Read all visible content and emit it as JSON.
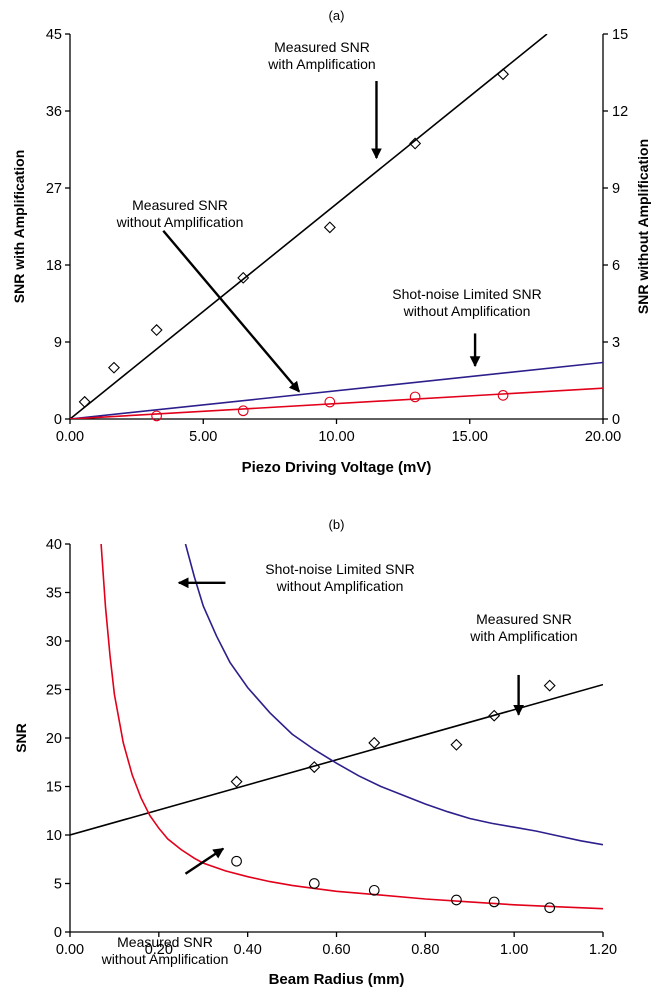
{
  "chart_data": [
    {
      "type": "scatter",
      "title": "(a)",
      "xlabel": "Piezo Driving Voltage (mV)",
      "ylabel": "SNR with Amplification",
      "ylabel_right": "SNR without Amplification",
      "xlim": [
        0,
        20
      ],
      "ylim": [
        0,
        45
      ],
      "ylim_right": [
        0,
        15
      ],
      "x_ticks": [
        "0.00",
        "5.00",
        "10.00",
        "15.00",
        "20.00"
      ],
      "y_ticks": [
        "0",
        "9",
        "18",
        "27",
        "36",
        "45"
      ],
      "y_ticks_right": [
        "0",
        "3",
        "6",
        "9",
        "12",
        "15"
      ],
      "grid": false,
      "series": [
        {
          "axis": "left",
          "marker": "diamond",
          "color": "#000000",
          "points": [
            [
              0.55,
              2.0
            ],
            [
              1.65,
              6.0
            ],
            [
              3.25,
              10.4
            ],
            [
              6.5,
              16.5
            ],
            [
              9.75,
              22.4
            ],
            [
              12.95,
              32.2
            ],
            [
              16.25,
              40.3
            ]
          ]
        },
        {
          "axis": "left",
          "line": "fit",
          "color": "#000000",
          "x": [
            0,
            17.9
          ],
          "y": [
            0,
            45
          ]
        },
        {
          "axis": "right",
          "line": "fit",
          "color": "#2c1f8c",
          "x": [
            0,
            20
          ],
          "y": [
            0,
            2.2
          ]
        },
        {
          "axis": "right",
          "line": "fit",
          "color": "#e2001a",
          "x": [
            0,
            20
          ],
          "y": [
            0,
            1.2
          ]
        },
        {
          "axis": "right",
          "marker": "circle",
          "color": "#e2001a",
          "points": [
            [
              3.25,
              0.12
            ],
            [
              6.5,
              0.32
            ],
            [
              9.75,
              0.66
            ],
            [
              12.95,
              0.86
            ],
            [
              16.25,
              0.92
            ]
          ]
        }
      ],
      "annotations": [
        {
          "lines": [
            "Measured SNR",
            "with Amplification"
          ],
          "from": [
            11.5,
            39.5
          ],
          "to": [
            11.5,
            30.5
          ]
        },
        {
          "lines": [
            "Measured SNR",
            "without Amplification"
          ],
          "from": [
            3.5,
            22.0
          ],
          "to": [
            8.6,
            3.2
          ]
        },
        {
          "lines": [
            "Shot-noise Limited SNR",
            "without Amplification"
          ],
          "from": [
            15.2,
            10.0
          ],
          "to": [
            15.2,
            6.2
          ]
        }
      ]
    },
    {
      "type": "line",
      "title": "(b)",
      "xlabel": "Beam Radius (mm)",
      "ylabel": "SNR",
      "xlim": [
        0,
        1.2
      ],
      "ylim": [
        0,
        40
      ],
      "x_ticks": [
        "0.00",
        "0.20",
        "0.40",
        "0.60",
        "0.80",
        "1.00",
        "1.20"
      ],
      "y_ticks": [
        "0",
        "5",
        "10",
        "15",
        "20",
        "25",
        "30",
        "35",
        "40"
      ],
      "grid": false,
      "series": [
        {
          "marker": "diamond",
          "color": "#000000",
          "points": [
            [
              0.375,
              15.5
            ],
            [
              0.55,
              17.0
            ],
            [
              0.685,
              19.5
            ],
            [
              0.87,
              19.3
            ],
            [
              0.955,
              22.3
            ],
            [
              1.08,
              25.4
            ]
          ]
        },
        {
          "line": "fit",
          "color": "#000000",
          "x": [
            0,
            1.2
          ],
          "y": [
            10.0,
            25.5
          ]
        },
        {
          "line": "curve",
          "color": "#2c1f8c",
          "x": [
            0.26,
            0.28,
            0.3,
            0.33,
            0.36,
            0.4,
            0.45,
            0.5,
            0.55,
            0.6,
            0.65,
            0.7,
            0.75,
            0.8,
            0.85,
            0.9,
            0.95,
            1.0,
            1.05,
            1.1,
            1.15,
            1.2
          ],
          "y": [
            40.0,
            36.6,
            33.6,
            30.5,
            27.8,
            25.2,
            22.6,
            20.4,
            18.8,
            17.4,
            16.1,
            15.0,
            14.1,
            13.2,
            12.4,
            11.7,
            11.2,
            10.8,
            10.4,
            9.9,
            9.4,
            9.0
          ]
        },
        {
          "line": "curve",
          "color": "#e2001a",
          "x": [
            0.07,
            0.08,
            0.09,
            0.1,
            0.12,
            0.14,
            0.16,
            0.18,
            0.2,
            0.22,
            0.25,
            0.28,
            0.3,
            0.35,
            0.4,
            0.45,
            0.5,
            0.55,
            0.6,
            0.7,
            0.8,
            0.9,
            1.0,
            1.1,
            1.2
          ],
          "y": [
            40.0,
            33.5,
            28.5,
            24.5,
            19.5,
            16.2,
            13.8,
            12.0,
            10.7,
            9.6,
            8.5,
            7.6,
            7.1,
            6.3,
            5.7,
            5.2,
            4.8,
            4.5,
            4.2,
            3.8,
            3.4,
            3.1,
            2.8,
            2.6,
            2.4
          ]
        },
        {
          "marker": "circle",
          "color": "#000000",
          "points": [
            [
              0.375,
              7.3
            ],
            [
              0.55,
              5.0
            ],
            [
              0.685,
              4.3
            ],
            [
              0.87,
              3.3
            ],
            [
              0.955,
              3.1
            ],
            [
              1.08,
              2.5
            ]
          ]
        }
      ],
      "annotations": [
        {
          "lines": [
            "Shot-noise Limited SNR",
            "without Amplification"
          ],
          "from": [
            0.35,
            36.0
          ],
          "to": [
            0.245,
            36.0
          ]
        },
        {
          "lines": [
            "Measured SNR",
            "with Amplification"
          ],
          "from": [
            1.01,
            26.5
          ],
          "to": [
            1.01,
            22.4
          ]
        },
        {
          "lines": [
            "Measured SNR",
            "without Amplification"
          ],
          "from": [
            0.26,
            6.0
          ],
          "to": [
            0.345,
            8.6
          ]
        }
      ]
    }
  ]
}
